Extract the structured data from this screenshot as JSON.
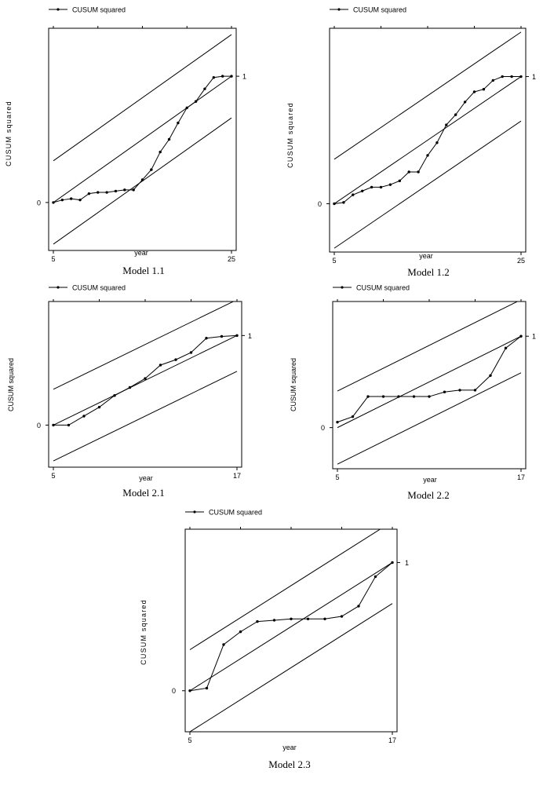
{
  "legend_label": "CUSUM squared",
  "chart_data": [
    {
      "type": "line",
      "caption": "Model 1.1",
      "xlabel": "year",
      "ylabel": "CUSUM squared",
      "x_tick_labels": [
        "5",
        "25"
      ],
      "y_tick_labels": [
        "0",
        "1"
      ],
      "xlim": [
        5,
        25
      ],
      "ylim": [
        -0.38,
        1.38
      ],
      "series": [
        {
          "name": "CUSUM squared",
          "x": [
            5,
            6,
            7,
            8,
            9,
            10,
            11,
            12,
            13,
            14,
            15,
            16,
            17,
            18,
            19,
            20,
            21,
            22,
            23,
            24,
            25
          ],
          "values": [
            0.0,
            0.02,
            0.03,
            0.02,
            0.07,
            0.08,
            0.08,
            0.09,
            0.1,
            0.1,
            0.18,
            0.26,
            0.4,
            0.5,
            0.63,
            0.75,
            0.8,
            0.9,
            0.99,
            1.0,
            1.0
          ]
        },
        {
          "x": [
            5,
            25
          ],
          "values": [
            0,
            1
          ]
        },
        {
          "x": [
            5,
            25
          ],
          "values": [
            0.33,
            1.33
          ]
        },
        {
          "x": [
            5,
            25
          ],
          "values": [
            -0.33,
            0.67
          ]
        }
      ]
    },
    {
      "type": "line",
      "caption": "Model 1.2",
      "xlabel": "year",
      "ylabel": "CUSUM squared",
      "x_tick_labels": [
        "5",
        "25"
      ],
      "y_tick_labels": [
        "0",
        "1"
      ],
      "xlim": [
        5,
        25
      ],
      "ylim": [
        -0.38,
        1.38
      ],
      "series": [
        {
          "name": "CUSUM squared",
          "x": [
            5,
            6,
            7,
            8,
            9,
            10,
            11,
            12,
            13,
            14,
            15,
            16,
            17,
            18,
            19,
            20,
            21,
            22,
            23,
            24,
            25
          ],
          "values": [
            0.0,
            0.01,
            0.07,
            0.1,
            0.13,
            0.13,
            0.15,
            0.18,
            0.25,
            0.25,
            0.38,
            0.48,
            0.62,
            0.7,
            0.8,
            0.88,
            0.9,
            0.97,
            1.0,
            1.0,
            1.0
          ]
        },
        {
          "x": [
            5,
            25
          ],
          "values": [
            0,
            1
          ]
        },
        {
          "x": [
            5,
            25
          ],
          "values": [
            0.35,
            1.35
          ]
        },
        {
          "x": [
            5,
            25
          ],
          "values": [
            -0.35,
            0.65
          ]
        }
      ]
    },
    {
      "type": "line",
      "caption": "Model 2.1",
      "xlabel": "year",
      "ylabel": "CUSUM squared",
      "x_tick_labels": [
        "5",
        "17"
      ],
      "y_tick_labels": [
        "0",
        "1"
      ],
      "xlim": [
        5,
        17
      ],
      "ylim": [
        -0.47,
        1.38
      ],
      "series": [
        {
          "name": "CUSUM squared",
          "x": [
            5,
            6,
            7,
            8,
            9,
            10,
            11,
            12,
            13,
            14,
            15,
            16,
            17
          ],
          "values": [
            0.0,
            0.0,
            0.1,
            0.2,
            0.33,
            0.42,
            0.52,
            0.67,
            0.73,
            0.81,
            0.97,
            0.99,
            1.0
          ]
        },
        {
          "x": [
            5,
            17
          ],
          "values": [
            0,
            1
          ]
        },
        {
          "x": [
            5,
            17
          ],
          "values": [
            0.4,
            1.4
          ]
        },
        {
          "x": [
            5,
            17
          ],
          "values": [
            -0.4,
            0.6
          ]
        }
      ]
    },
    {
      "type": "line",
      "caption": "Model 2.2",
      "xlabel": "year",
      "ylabel": "CUSUM squared",
      "x_tick_labels": [
        "5",
        "17"
      ],
      "y_tick_labels": [
        "0",
        "1"
      ],
      "xlim": [
        5,
        17
      ],
      "ylim": [
        -0.45,
        1.38
      ],
      "series": [
        {
          "name": "CUSUM squared",
          "x": [
            5,
            6,
            7,
            8,
            9,
            10,
            11,
            12,
            13,
            14,
            15,
            16,
            17
          ],
          "values": [
            0.06,
            0.12,
            0.34,
            0.34,
            0.34,
            0.34,
            0.34,
            0.39,
            0.41,
            0.41,
            0.57,
            0.87,
            1.0
          ]
        },
        {
          "x": [
            5,
            17
          ],
          "values": [
            0,
            1
          ]
        },
        {
          "x": [
            5,
            17
          ],
          "values": [
            0.4,
            1.4
          ]
        },
        {
          "x": [
            5,
            17
          ],
          "values": [
            -0.4,
            0.6
          ]
        }
      ]
    },
    {
      "type": "line",
      "caption": "Model 2.3",
      "xlabel": "year",
      "ylabel": "CUSUM squared",
      "x_tick_labels": [
        "5",
        "17"
      ],
      "y_tick_labels": [
        "0",
        "1"
      ],
      "xlim": [
        5,
        17
      ],
      "ylim": [
        -0.32,
        1.26
      ],
      "series": [
        {
          "name": "CUSUM squared",
          "x": [
            5,
            6,
            7,
            8,
            9,
            10,
            11,
            12,
            13,
            14,
            15,
            16,
            17
          ],
          "values": [
            0.0,
            0.02,
            0.36,
            0.46,
            0.54,
            0.55,
            0.56,
            0.56,
            0.56,
            0.58,
            0.66,
            0.89,
            1.0
          ]
        },
        {
          "x": [
            5,
            17
          ],
          "values": [
            0,
            1
          ]
        },
        {
          "x": [
            5,
            17
          ],
          "values": [
            0.32,
            1.32
          ]
        },
        {
          "x": [
            5,
            17
          ],
          "values": [
            -0.32,
            0.68
          ]
        }
      ]
    }
  ]
}
